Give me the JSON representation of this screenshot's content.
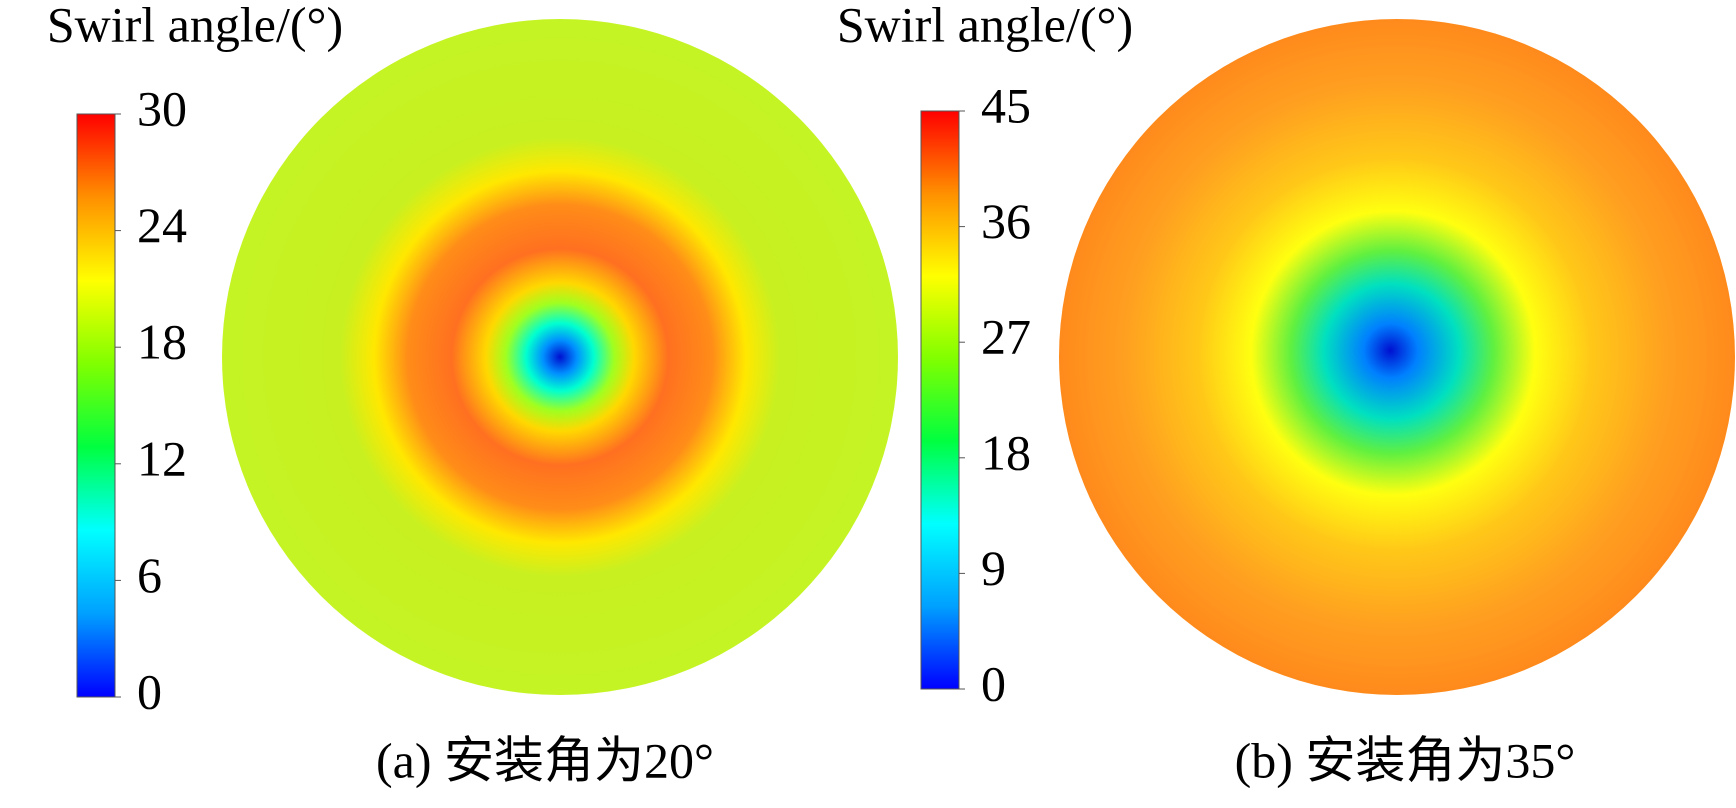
{
  "chart_data": [
    {
      "type": "contour",
      "title": "Swirl angle/(°)",
      "caption": "(a) 安装角为20°",
      "clim": [
        0,
        30
      ],
      "cticks": [
        0,
        6,
        12,
        18,
        24,
        30
      ],
      "colormap": [
        "#0000ff",
        "#00a0ff",
        "#00ffff",
        "#00ff40",
        "#80ff00",
        "#ffff00",
        "#ff9000",
        "#ff0000"
      ]
    },
    {
      "type": "contour",
      "title": "Swirl angle/(°)",
      "caption": "(b) 安装角为35°",
      "clim": [
        0,
        45
      ],
      "cticks": [
        0,
        9,
        18,
        27,
        36,
        45
      ],
      "colormap": [
        "#0000ff",
        "#00a0ff",
        "#00ffff",
        "#00ff40",
        "#80ff00",
        "#ffff00",
        "#ff9000",
        "#ff0000"
      ]
    }
  ]
}
